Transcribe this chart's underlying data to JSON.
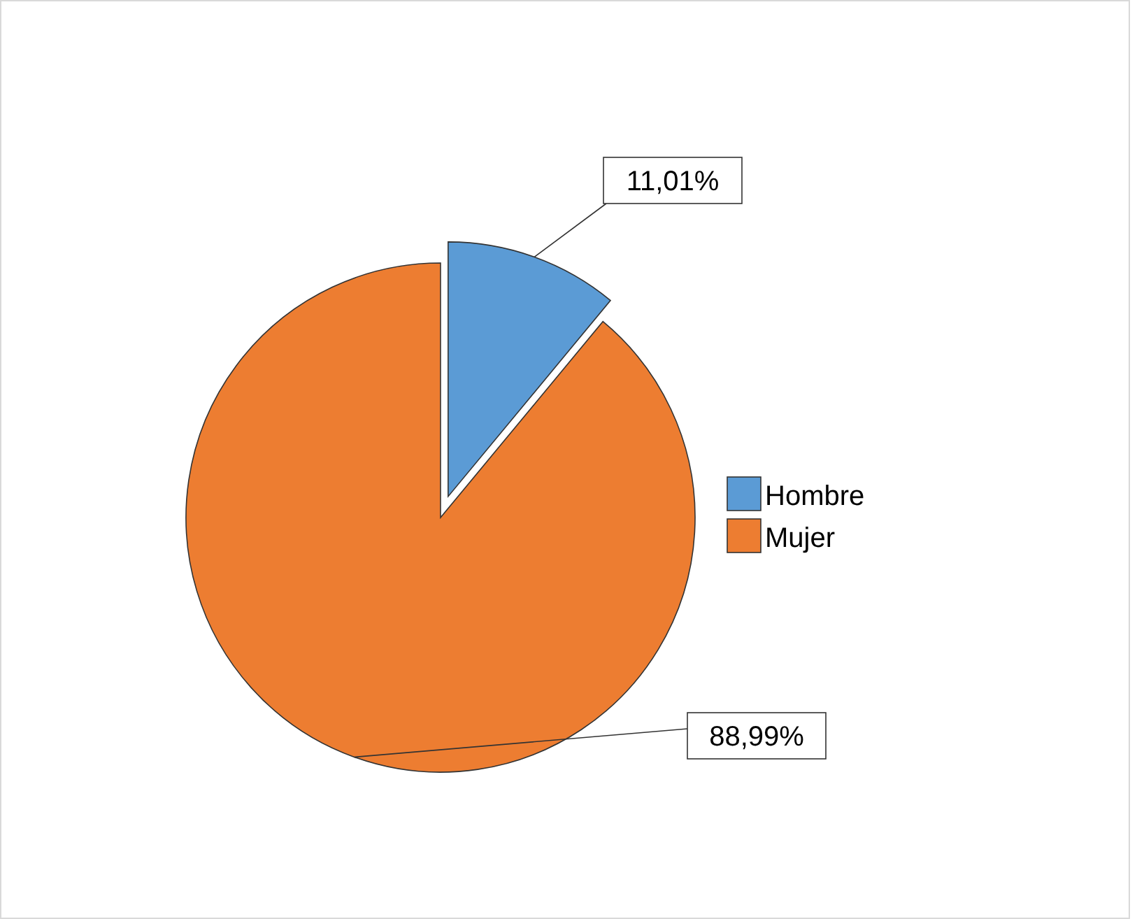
{
  "chart_data": {
    "type": "pie",
    "categories": [
      "Hombre",
      "Mujer"
    ],
    "values": [
      11.01,
      88.99
    ],
    "colors": [
      "#5b9bd5",
      "#ed7d31"
    ],
    "value_labels": [
      "11,01%",
      "88,99%"
    ],
    "legend": "right"
  }
}
